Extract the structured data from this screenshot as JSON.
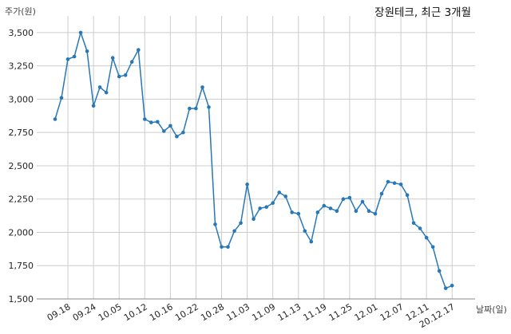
{
  "chart_data": {
    "type": "line",
    "title": "장원테크, 최근 3개월",
    "ylabel": "주가(원)",
    "xlabel": "날짜(일)",
    "ylim": [
      1500,
      3625
    ],
    "y_ticks": [
      1500,
      1750,
      2000,
      2250,
      2500,
      2750,
      3000,
      3250,
      3500
    ],
    "y_tick_labels": [
      "1,500",
      "1,750",
      "2,000",
      "2,250",
      "2,500",
      "2,750",
      "3,000",
      "3,250",
      "3,500"
    ],
    "x_tick_labels": [
      "09.18",
      "09.24",
      "10.05",
      "10.12",
      "10.16",
      "10.22",
      "10.28",
      "11.03",
      "11.09",
      "11.13",
      "11.19",
      "11.25",
      "12.01",
      "12.07",
      "12.11",
      "20.12.17"
    ],
    "x_tick_index": [
      2,
      6,
      10,
      14,
      18,
      22,
      26,
      30,
      34,
      38,
      42,
      46,
      50,
      54,
      58,
      62
    ],
    "grid": true,
    "line_color": "#2878b8",
    "series": [
      {
        "values": [
          2850,
          3010,
          3300,
          3320,
          3500,
          3360,
          2950,
          3090,
          3050,
          3310,
          3170,
          3180,
          3280,
          3370,
          2850,
          2825,
          2830,
          2760,
          2800,
          2720,
          2750,
          2930,
          2930,
          3090,
          2940,
          2060,
          1890,
          1890,
          2010,
          2070,
          2360,
          2100,
          2180,
          2190,
          2220,
          2300,
          2270,
          2150,
          2140,
          2010,
          1930,
          2150,
          2200,
          2180,
          2160,
          2250,
          2260,
          2160,
          2230,
          2160,
          2140,
          2290,
          2380,
          2370,
          2360,
          2280,
          2070,
          2030,
          1960,
          1890,
          1710,
          1580,
          1600
        ]
      }
    ]
  }
}
